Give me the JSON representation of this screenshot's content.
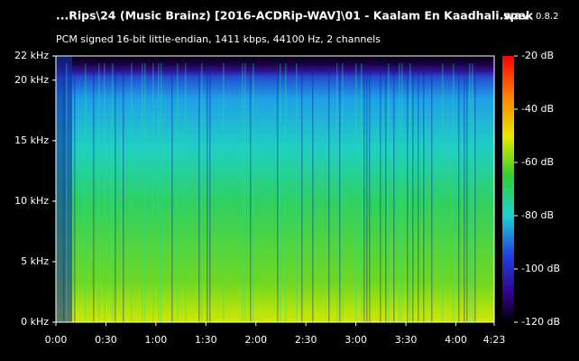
{
  "chart_data": {
    "type": "spectrogram",
    "title": "...Rips\\24 (Music Brainz) [2016-ACDRip-WAV]\\01 - Kaalam En Kaadhali.wav",
    "app_name": "spek",
    "app_version": "0.8.2",
    "subtitle": "PCM signed 16-bit little-endian, 1411 kbps, 44100 Hz, 2 channels",
    "xlim": [
      0,
      263
    ],
    "xticks": [
      {
        "value": 0,
        "label": "0:00"
      },
      {
        "value": 30,
        "label": "0:30"
      },
      {
        "value": 60,
        "label": "1:00"
      },
      {
        "value": 90,
        "label": "1:30"
      },
      {
        "value": 120,
        "label": "2:00"
      },
      {
        "value": 150,
        "label": "2:30"
      },
      {
        "value": 180,
        "label": "3:00"
      },
      {
        "value": 210,
        "label": "3:30"
      },
      {
        "value": 240,
        "label": "4:00"
      },
      {
        "value": 263,
        "label": "4:23"
      }
    ],
    "ylim": [
      0,
      22
    ],
    "yticks": [
      {
        "value": 0,
        "label": "0 kHz"
      },
      {
        "value": 5,
        "label": "5 kHz"
      },
      {
        "value": 10,
        "label": "10 kHz"
      },
      {
        "value": 15,
        "label": "15 kHz"
      },
      {
        "value": 20,
        "label": "20 kHz"
      },
      {
        "value": 22,
        "label": "22 kHz"
      }
    ],
    "colorbar_lim": [
      -120,
      -20
    ],
    "colorbar_ticks": [
      {
        "value": -20,
        "label": "-20 dB"
      },
      {
        "value": -40,
        "label": "-40 dB"
      },
      {
        "value": -60,
        "label": "-60 dB"
      },
      {
        "value": -80,
        "label": "-80 dB"
      },
      {
        "value": -100,
        "label": "-100 dB"
      },
      {
        "value": -120,
        "label": "-120 dB"
      }
    ]
  }
}
